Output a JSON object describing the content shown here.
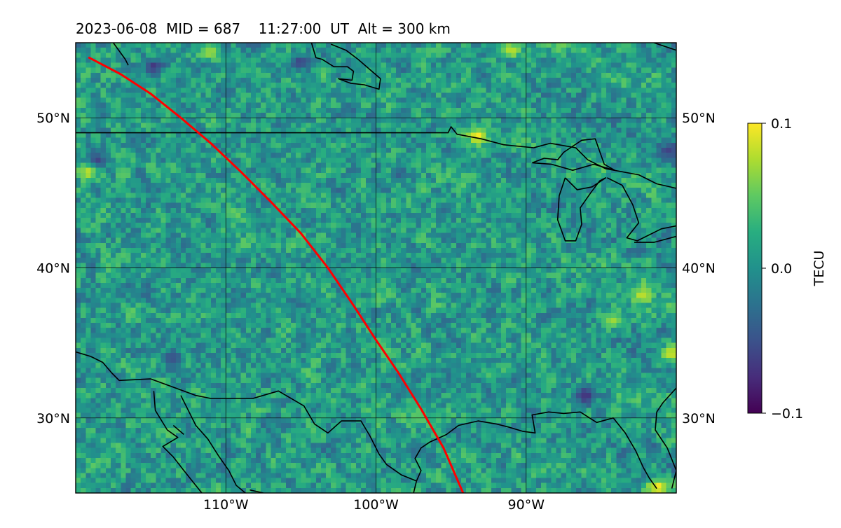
{
  "figure": {
    "title": "2023-06-08  MID = 687    11:27:00  UT  Alt = 300 km"
  },
  "map": {
    "lon_range": [
      -120,
      -80
    ],
    "lat_range": [
      25,
      55
    ],
    "gridlines": true,
    "lon_ticks": [
      {
        "value": -110,
        "label": "110°W"
      },
      {
        "value": -100,
        "label": "100°W"
      },
      {
        "value": -90,
        "label": "90°W"
      }
    ],
    "lat_ticks": [
      {
        "value": 50,
        "label": "50°N"
      },
      {
        "value": 40,
        "label": "40°N"
      },
      {
        "value": 30,
        "label": "30°N"
      }
    ],
    "field": {
      "quantity": "TEC perturbation",
      "colormap": "viridis",
      "hotspots": [
        {
          "lon": -93.2,
          "lat": 48.8,
          "value": 0.1
        },
        {
          "lon": -119.1,
          "lat": 46.5,
          "value": 0.09
        },
        {
          "lon": -81.2,
          "lat": 25.4,
          "value": 0.1
        },
        {
          "lon": -80.3,
          "lat": 34.3,
          "value": 0.09
        },
        {
          "lon": -82.3,
          "lat": 38.2,
          "value": 0.08
        },
        {
          "lon": -84.2,
          "lat": 36.5,
          "value": 0.07
        },
        {
          "lon": -111.0,
          "lat": 54.4,
          "value": 0.07
        },
        {
          "lon": -91.0,
          "lat": 54.5,
          "value": 0.08
        },
        {
          "lon": -97.0,
          "lat": 30.0,
          "value": 0.05
        }
      ],
      "coldspots": [
        {
          "lon": -114.8,
          "lat": 53.4,
          "value": -0.07
        },
        {
          "lon": -105.0,
          "lat": 53.7,
          "value": -0.06
        },
        {
          "lon": -118.5,
          "lat": 47.2,
          "value": -0.06
        },
        {
          "lon": -80.5,
          "lat": 47.8,
          "value": -0.06
        },
        {
          "lon": -86.0,
          "lat": 31.5,
          "value": -0.07
        },
        {
          "lon": -113.5,
          "lat": 34.0,
          "value": -0.05
        }
      ]
    },
    "track": {
      "color": "#ff0000",
      "points": [
        [
          -119.1,
          54.0
        ],
        [
          -117.0,
          52.9
        ],
        [
          -115.0,
          51.6
        ],
        [
          -113.0,
          50.0
        ],
        [
          -111.0,
          48.3
        ],
        [
          -109.0,
          46.4
        ],
        [
          -107.0,
          44.4
        ],
        [
          -105.0,
          42.3
        ],
        [
          -103.2,
          40.0
        ],
        [
          -101.5,
          37.5
        ],
        [
          -100.0,
          35.2
        ],
        [
          -98.5,
          33.0
        ],
        [
          -97.0,
          30.6
        ],
        [
          -95.5,
          28.0
        ],
        [
          -94.2,
          25.0
        ]
      ]
    },
    "coastlines": [
      [
        [
          -98.0,
          49.0
        ],
        [
          -95.2,
          49.0
        ],
        [
          -95.0,
          49.4
        ],
        [
          -94.6,
          48.9
        ],
        [
          -93.0,
          48.6
        ],
        [
          -91.5,
          48.2
        ],
        [
          -89.5,
          48.0
        ],
        [
          -88.4,
          48.3
        ],
        [
          -86.7,
          48.0
        ],
        [
          -85.9,
          47.2
        ],
        [
          -84.7,
          46.6
        ],
        [
          -82.5,
          46.2
        ],
        [
          -81.3,
          45.6
        ],
        [
          -80.0,
          45.3
        ]
      ],
      [
        [
          -120.0,
          49.0
        ],
        [
          -98.0,
          49.0
        ]
      ],
      [
        [
          -89.6,
          47.0
        ],
        [
          -88.8,
          47.3
        ],
        [
          -87.9,
          47.2
        ],
        [
          -87.5,
          47.7
        ],
        [
          -86.3,
          48.5
        ],
        [
          -85.4,
          48.6
        ],
        [
          -84.8,
          46.9
        ],
        [
          -84.1,
          46.5
        ],
        [
          -85.5,
          46.9
        ],
        [
          -86.9,
          46.5
        ],
        [
          -88.3,
          46.9
        ],
        [
          -89.6,
          47.0
        ]
      ],
      [
        [
          -87.4,
          46.0
        ],
        [
          -87.8,
          44.8
        ],
        [
          -87.9,
          43.2
        ],
        [
          -87.4,
          41.8
        ],
        [
          -86.7,
          41.8
        ],
        [
          -86.3,
          42.9
        ],
        [
          -86.4,
          44.0
        ],
        [
          -85.7,
          45.0
        ],
        [
          -85.1,
          45.8
        ],
        [
          -84.7,
          46.0
        ],
        [
          -85.6,
          45.4
        ],
        [
          -86.6,
          45.2
        ],
        [
          -87.4,
          46.0
        ]
      ],
      [
        [
          -84.6,
          46.0
        ],
        [
          -83.6,
          45.5
        ],
        [
          -82.9,
          44.2
        ],
        [
          -82.5,
          43.0
        ],
        [
          -83.3,
          42.0
        ],
        [
          -82.6,
          41.8
        ],
        [
          -81.0,
          42.6
        ],
        [
          -80.0,
          42.8
        ]
      ],
      [
        [
          -82.8,
          41.7
        ],
        [
          -81.5,
          41.7
        ],
        [
          -80.0,
          42.1
        ]
      ],
      [
        [
          -104.3,
          55.0
        ],
        [
          -104.0,
          54.0
        ],
        [
          -103.6,
          53.9
        ],
        [
          -102.8,
          53.4
        ],
        [
          -101.9,
          53.4
        ],
        [
          -101.5,
          53.1
        ],
        [
          -101.6,
          52.5
        ],
        [
          -102.5,
          52.6
        ],
        [
          -101.7,
          52.3
        ],
        [
          -100.8,
          52.2
        ],
        [
          -99.8,
          51.9
        ],
        [
          -99.7,
          52.6
        ],
        [
          -101.2,
          53.9
        ],
        [
          -102.0,
          54.5
        ],
        [
          -103.0,
          54.9
        ]
      ],
      [
        [
          -117.5,
          55.0
        ],
        [
          -116.7,
          53.9
        ],
        [
          -116.5,
          53.5
        ]
      ],
      [
        [
          -81.5,
          55.0
        ],
        [
          -80.0,
          54.5
        ]
      ],
      [
        [
          -80.4,
          55.0
        ],
        [
          -80.0,
          55.0
        ]
      ],
      [
        [
          -120.0,
          34.4
        ],
        [
          -119.0,
          34.1
        ],
        [
          -118.2,
          33.7
        ],
        [
          -117.6,
          33.0
        ],
        [
          -117.1,
          32.5
        ],
        [
          -115.0,
          32.6
        ],
        [
          -112.0,
          31.5
        ],
        [
          -111.0,
          31.3
        ],
        [
          -108.2,
          31.3
        ],
        [
          -106.5,
          31.8
        ],
        [
          -104.8,
          30.8
        ],
        [
          -104.1,
          29.6
        ],
        [
          -103.2,
          29.0
        ],
        [
          -102.3,
          29.8
        ],
        [
          -101.0,
          29.8
        ],
        [
          -100.4,
          28.8
        ],
        [
          -99.8,
          27.6
        ],
        [
          -99.3,
          26.9
        ],
        [
          -98.3,
          26.2
        ],
        [
          -97.3,
          25.8
        ]
      ],
      [
        [
          -97.3,
          25.8
        ],
        [
          -97.0,
          26.5
        ],
        [
          -97.4,
          27.3
        ],
        [
          -97.0,
          28.0
        ],
        [
          -96.4,
          28.4
        ],
        [
          -95.3,
          28.9
        ],
        [
          -94.5,
          29.5
        ],
        [
          -93.2,
          29.8
        ],
        [
          -92.0,
          29.6
        ],
        [
          -91.2,
          29.4
        ],
        [
          -90.2,
          29.1
        ],
        [
          -89.4,
          29.0
        ],
        [
          -89.6,
          30.2
        ],
        [
          -88.5,
          30.4
        ],
        [
          -87.5,
          30.3
        ],
        [
          -86.4,
          30.4
        ],
        [
          -85.3,
          29.7
        ],
        [
          -84.2,
          30.0
        ],
        [
          -83.4,
          29.0
        ],
        [
          -82.7,
          27.8
        ],
        [
          -82.2,
          26.7
        ],
        [
          -81.8,
          26.0
        ],
        [
          -81.3,
          25.3
        ]
      ],
      [
        [
          -80.0,
          32.0
        ],
        [
          -80.9,
          31.0
        ],
        [
          -81.3,
          30.4
        ],
        [
          -81.4,
          29.2
        ],
        [
          -80.6,
          28.0
        ],
        [
          -80.0,
          26.5
        ],
        [
          -80.3,
          25.3
        ]
      ],
      [
        [
          -97.3,
          25.8
        ],
        [
          -97.5,
          25.0
        ]
      ],
      [
        [
          -113.0,
          31.5
        ],
        [
          -112.0,
          29.5
        ],
        [
          -111.2,
          28.6
        ],
        [
          -110.5,
          27.5
        ],
        [
          -109.8,
          26.5
        ],
        [
          -109.3,
          25.5
        ],
        [
          -108.7,
          25.0
        ]
      ],
      [
        [
          -114.8,
          31.8
        ],
        [
          -114.7,
          30.5
        ],
        [
          -113.9,
          29.2
        ],
        [
          -113.2,
          28.7
        ],
        [
          -114.2,
          28.1
        ],
        [
          -113.5,
          27.4
        ],
        [
          -112.8,
          26.5
        ],
        [
          -112.0,
          25.5
        ],
        [
          -111.6,
          25.0
        ]
      ],
      [
        [
          -113.5,
          29.5
        ],
        [
          -112.8,
          28.9
        ]
      ],
      [
        [
          -108.4,
          25.2
        ],
        [
          -107.5,
          25.0
        ]
      ]
    ]
  },
  "colorbar": {
    "label": "TECU",
    "min": -0.1,
    "max": 0.1,
    "ticks": [
      {
        "value": 0.1,
        "label": "0.1"
      },
      {
        "value": 0.0,
        "label": "0.0"
      },
      {
        "value": -0.1,
        "label": "−0.1"
      }
    ],
    "colormap": [
      "#440154",
      "#472d7b",
      "#3b528b",
      "#2c728e",
      "#21918c",
      "#28ae80",
      "#5ec962",
      "#addc30",
      "#fde725"
    ]
  }
}
